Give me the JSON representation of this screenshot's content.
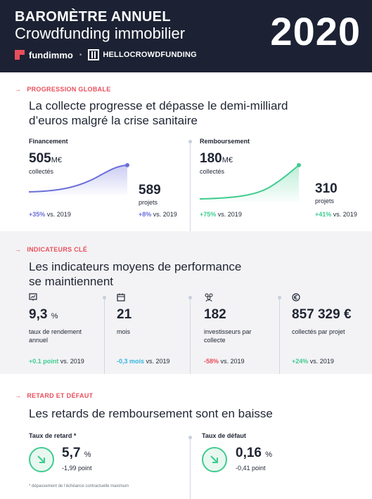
{
  "header": {
    "title": "BAROMÈTRE ANNUEL",
    "subtitle": "Crowdfunding immobilier",
    "year": "2020",
    "brand1": "fundimmo",
    "separator": "•",
    "brand2": "HELLOCROWDFUNDING"
  },
  "progression": {
    "kicker": "PROGRESSION GLOBALE",
    "arrow": "→",
    "lead_line1": "La collecte progresse et dépasse le demi-milliard",
    "lead_line2": "d’euros malgré la crise sanitaire",
    "financement": {
      "label": "Financement",
      "value": "505",
      "unit": "M€",
      "caption": "collectés",
      "projects_value": "589",
      "projects_caption": "projets",
      "delta_amount": "+35%",
      "delta_amount_suffix": "vs. 2019",
      "delta_projects": "+8%",
      "delta_projects_suffix": "vs. 2019",
      "color": "#6b6fd9"
    },
    "remboursement": {
      "label": "Remboursement",
      "value": "180",
      "unit": "M€",
      "caption": "collectés",
      "projects_value": "310",
      "projects_caption": "projets",
      "delta_amount": "+75%",
      "delta_amount_suffix": "vs. 2019",
      "delta_projects": "+41%",
      "delta_projects_suffix": "vs. 2019",
      "color": "#3fcc8f"
    }
  },
  "indicateurs": {
    "kicker": "INDICATEURS CLÉ",
    "arrow": "→",
    "lead_line1": "Les indicateurs moyens de performance",
    "lead_line2": "se maintiennent",
    "items": [
      {
        "icon": "chart-screen-icon",
        "value": "9,3",
        "unit": "%",
        "caption1": "taux de rendement",
        "caption2": "annuel",
        "delta": "+0.1 point",
        "suffix": "vs. 2019",
        "delta_color": "#3fcc8f"
      },
      {
        "icon": "calendar-icon",
        "value": "21",
        "unit": "",
        "caption1": "mois",
        "caption2": "",
        "delta": "-0,3 mois",
        "suffix": "vs. 2019",
        "delta_color": "#36b5e0"
      },
      {
        "icon": "users-icon",
        "value": "182",
        "unit": "",
        "caption1": "investisseurs par",
        "caption2": "collecte",
        "delta": "-58%",
        "suffix": "vs. 2019",
        "delta_color": "#e94e5b"
      },
      {
        "icon": "euro-icon",
        "value": "857 329 €",
        "unit": "",
        "caption1": "collectés par projet",
        "caption2": "",
        "delta": "+24%",
        "suffix": "vs. 2019",
        "delta_color": "#3fcc8f"
      }
    ]
  },
  "retard": {
    "kicker": "RETARD ET DÉFAUT",
    "arrow": "→",
    "lead": "Les retards de remboursement sont en baisse",
    "taux_retard": {
      "label": "Taux de retard *",
      "value": "5,7",
      "unit": "%",
      "delta": "-1,99 point"
    },
    "taux_defaut": {
      "label": "Taux de défaut",
      "value": "0,16",
      "unit": "%",
      "delta": "-0,41 point"
    },
    "footnote": "* dépassement de l’échéance contractuelle maximum"
  }
}
